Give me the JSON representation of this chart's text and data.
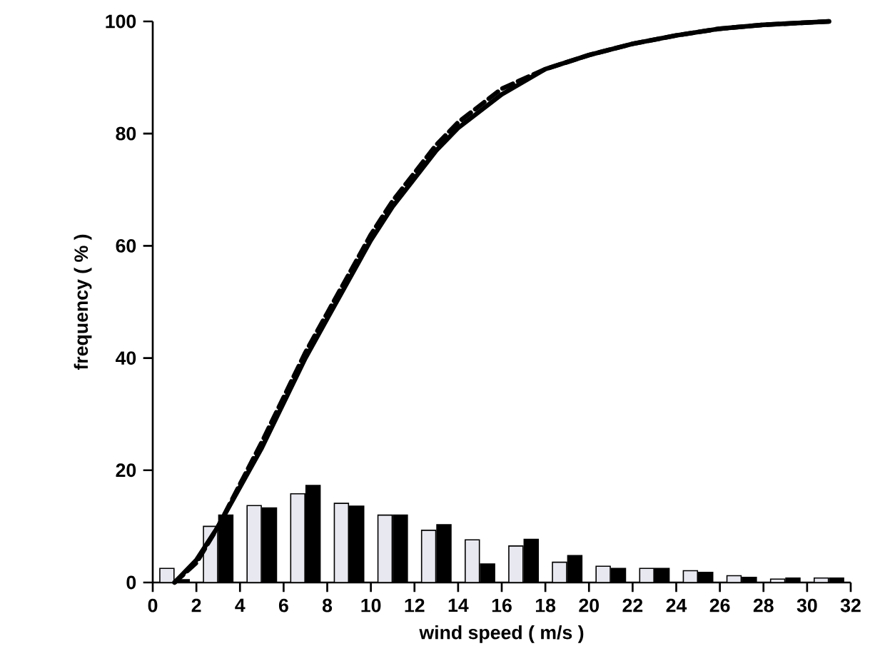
{
  "chart_data": {
    "type": "bar",
    "xlabel": "wind speed ( m/s )",
    "ylabel": "frequency ( % )",
    "x": [
      1,
      3,
      5,
      7,
      9,
      11,
      13,
      15,
      17,
      19,
      21,
      23,
      25,
      27,
      29,
      31
    ],
    "series": [
      {
        "color": "#e8e8f0",
        "values": [
          2.5,
          10.0,
          13.7,
          15.8,
          14.1,
          12.0,
          9.3,
          7.6,
          6.5,
          3.6,
          2.9,
          2.5,
          2.1,
          1.2,
          0.6,
          0.8
        ]
      },
      {
        "color": "#000000",
        "values": [
          0.5,
          12.0,
          13.3,
          17.3,
          13.6,
          12.0,
          10.3,
          3.3,
          7.7,
          4.8,
          2.5,
          2.5,
          1.8,
          0.9,
          0.8,
          0.8
        ]
      },
      {
        "type": "line",
        "color": "#000000",
        "line_style": "solid",
        "x": [
          1,
          2,
          3,
          4,
          5,
          6,
          7,
          8,
          9,
          10,
          11,
          12,
          13,
          14,
          15,
          16,
          18,
          20,
          22,
          24,
          26,
          28,
          31
        ],
        "values": [
          0,
          4,
          10,
          17,
          24,
          32,
          40,
          47,
          54,
          61,
          67,
          72,
          77,
          81,
          84,
          87,
          91.5,
          94,
          96,
          97.5,
          98.7,
          99.4,
          100
        ]
      },
      {
        "type": "line",
        "color": "#000000",
        "line_style": "dashed",
        "x": [
          1,
          2,
          3,
          4,
          5,
          6,
          7,
          8,
          9,
          10,
          11,
          12,
          13,
          14,
          15,
          16,
          18,
          20,
          22,
          24,
          26,
          28,
          31
        ],
        "values": [
          0,
          3.5,
          10,
          17.5,
          25,
          33,
          41,
          48,
          55,
          62,
          68,
          73,
          78,
          82,
          85,
          88,
          91.5,
          94,
          96,
          97.5,
          98.7,
          99.4,
          100
        ]
      }
    ],
    "xlim": [
      0,
      32
    ],
    "xticks": [
      0,
      2,
      4,
      6,
      8,
      10,
      12,
      14,
      16,
      18,
      20,
      22,
      24,
      26,
      28,
      30,
      32
    ],
    "ylim": [
      0,
      100
    ],
    "yticks": [
      0,
      20,
      40,
      60,
      80,
      100
    ],
    "marker": "none"
  }
}
